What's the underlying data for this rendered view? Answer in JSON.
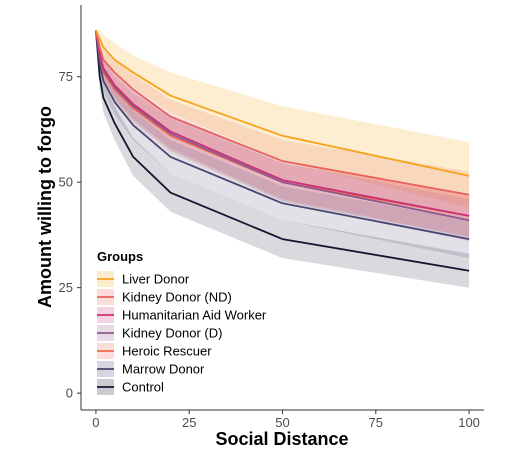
{
  "chart_data": {
    "type": "line",
    "xlabel": "Social Distance",
    "ylabel": "Amount willing to forgo",
    "xlim": [
      -4,
      104
    ],
    "ylim": [
      -4,
      92
    ],
    "xticks": [
      0,
      25,
      50,
      75,
      100
    ],
    "yticks": [
      0,
      25,
      50,
      75
    ],
    "grid": false,
    "legend": {
      "title": "Groups",
      "position": "bottom-left"
    },
    "x": [
      0,
      1,
      2,
      5,
      10,
      20,
      50,
      100
    ],
    "series": [
      {
        "name": "Liver Donor",
        "color": "#F5A31A",
        "values": [
          86,
          84,
          82,
          79,
          76,
          70.5,
          61,
          51.5
        ],
        "lower": [
          86,
          82,
          79.5,
          76,
          72.5,
          66.5,
          55,
          44
        ],
        "upper": [
          86,
          86,
          85,
          83,
          80,
          76,
          68,
          59.5
        ]
      },
      {
        "name": "Kidney Donor (ND)",
        "color": "#E8615A",
        "values": [
          86,
          82,
          79,
          76,
          72,
          65.5,
          55,
          47
        ],
        "lower": [
          86,
          80,
          76.5,
          73,
          68.5,
          61.5,
          50,
          41
        ],
        "upper": [
          86,
          84,
          81.5,
          79,
          75.5,
          69.5,
          60,
          52.5
        ]
      },
      {
        "name": "Humanitarian Aid Worker",
        "color": "#C9307A",
        "values": [
          86,
          80.5,
          77,
          73,
          68.5,
          62,
          50.5,
          42
        ],
        "lower": [
          86,
          78.5,
          74.5,
          70,
          65,
          58,
          46,
          37
        ],
        "upper": [
          86,
          82.5,
          79.5,
          76,
          72,
          66,
          55,
          47
        ]
      },
      {
        "name": "Kidney Donor (D)",
        "color": "#8C5A8E",
        "values": [
          86,
          80,
          76.5,
          72.5,
          68,
          61.5,
          50,
          41
        ],
        "lower": [
          86,
          78,
          74,
          69.5,
          64.5,
          57.5,
          45.5,
          36
        ],
        "upper": [
          86,
          82,
          79,
          75.5,
          71.5,
          65.5,
          54.5,
          46
        ]
      },
      {
        "name": "Heroic Rescuer",
        "color": "#F06A4D",
        "values": [
          86,
          80,
          76,
          72,
          67.5,
          61,
          50,
          42
        ],
        "lower": [
          86,
          78,
          73.5,
          69,
          64,
          57,
          45.5,
          37
        ],
        "upper": [
          86,
          82,
          78.5,
          75,
          71,
          65,
          54.5,
          47
        ]
      },
      {
        "name": "Marrow Donor",
        "color": "#4B4470",
        "values": [
          86,
          78,
          74,
          69,
          63.5,
          56,
          45,
          36.5
        ],
        "lower": [
          86,
          76,
          71.5,
          66,
          60,
          52,
          41,
          32
        ],
        "upper": [
          86,
          80,
          76.5,
          72,
          67,
          60,
          49,
          41
        ]
      },
      {
        "name": "Control",
        "color": "#141530",
        "values": [
          86,
          75,
          70,
          64,
          56,
          47.5,
          36.5,
          29
        ],
        "lower": [
          86,
          72,
          66.5,
          60,
          51.5,
          43,
          32,
          25
        ],
        "upper": [
          86,
          78,
          73.5,
          68,
          60.5,
          52,
          41,
          33
        ]
      }
    ]
  }
}
